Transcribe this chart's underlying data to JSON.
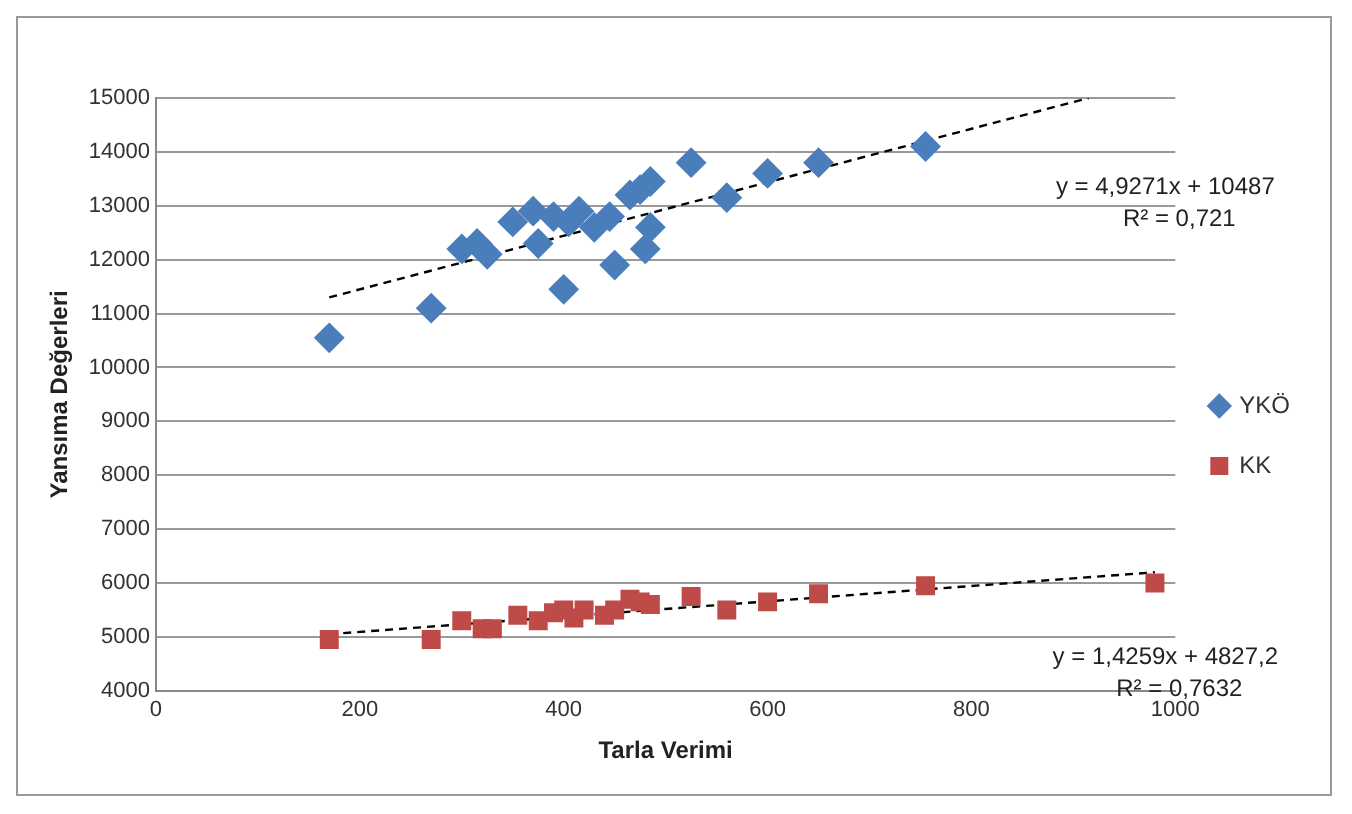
{
  "chart_data": {
    "type": "scatter",
    "xlabel": "Tarla Verimi",
    "ylabel": "Yansıma Değerleri",
    "xlim": [
      0,
      1000
    ],
    "xticks": [
      0,
      200,
      400,
      600,
      800,
      1000
    ],
    "ylim": [
      4000,
      15000
    ],
    "yticks": [
      4000,
      5000,
      6000,
      7000,
      8000,
      9000,
      10000,
      11000,
      12000,
      13000,
      14000,
      15000
    ],
    "grid": "y",
    "legend": "right",
    "annotations": [
      "y = 4,9271x + 10487",
      "R² = 0,721",
      "y = 1,4259x + 4827,2",
      "R² = 0,7632"
    ],
    "series": [
      {
        "name": "YKÖ",
        "color": "#4a7ebb",
        "marker": "diamond",
        "x": [
          170,
          270,
          300,
          315,
          325,
          350,
          370,
          375,
          390,
          400,
          405,
          415,
          430,
          445,
          450,
          465,
          475,
          480,
          485,
          485,
          525,
          560,
          600,
          650,
          755
        ],
        "values": [
          10550,
          11100,
          12200,
          12300,
          12100,
          12700,
          12900,
          12300,
          12800,
          11450,
          12700,
          12900,
          12600,
          12800,
          11900,
          13200,
          13300,
          12200,
          12600,
          13450,
          13800,
          13150,
          13600,
          13800,
          14100
        ]
      },
      {
        "name": "KK",
        "color": "#be4b48",
        "marker": "square",
        "x": [
          170,
          270,
          300,
          320,
          330,
          355,
          375,
          390,
          400,
          410,
          420,
          440,
          450,
          465,
          475,
          485,
          525,
          560,
          600,
          650,
          755,
          980
        ],
        "values": [
          4950,
          4950,
          5300,
          5150,
          5150,
          5400,
          5300,
          5450,
          5500,
          5350,
          5500,
          5400,
          5500,
          5700,
          5650,
          5600,
          5750,
          5500,
          5650,
          5800,
          5950,
          6000
        ]
      },
      {
        "type": "line",
        "color": "#000000",
        "line_style": "dashed",
        "marker": "none",
        "x": [
          170,
          915
        ],
        "values": [
          11300,
          15000
        ]
      },
      {
        "type": "line",
        "color": "#000000",
        "line_style": "dashed",
        "marker": "none",
        "x": [
          170,
          980
        ],
        "values": [
          5050,
          6200
        ]
      }
    ]
  }
}
